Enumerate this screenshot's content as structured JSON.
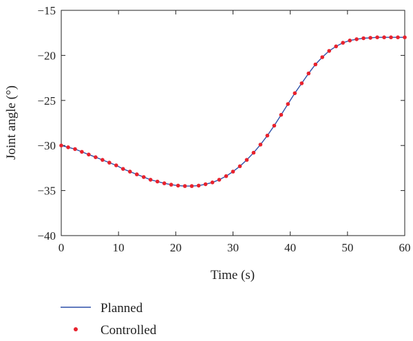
{
  "chart_data": {
    "type": "line",
    "title": "",
    "xlabel": "Time (s)",
    "ylabel": "Joint angle (°)",
    "xlim": [
      0,
      60
    ],
    "ylim": [
      -40,
      -15
    ],
    "xticks": [
      0,
      10,
      20,
      30,
      40,
      50,
      60
    ],
    "xtick_labels": [
      "0",
      "10",
      "20",
      "30",
      "40",
      "50",
      "60"
    ],
    "yticks": [
      -15,
      -20,
      -25,
      -30,
      -35,
      -40
    ],
    "ytick_labels": [
      "−15",
      "−20",
      "−25",
      "−30",
      "−35",
      "−40"
    ],
    "grid": false,
    "legend_position": "bottom-left, below axes",
    "series": [
      {
        "name": "Planned",
        "style": "line",
        "color": "#2c4fa8",
        "x": [
          0,
          1.2,
          2.4,
          3.6,
          4.8,
          6.0,
          7.2,
          8.4,
          9.6,
          10.8,
          12.0,
          13.2,
          14.4,
          15.6,
          16.8,
          18.0,
          19.2,
          20.4,
          21.6,
          22.8,
          24.0,
          25.2,
          26.4,
          27.6,
          28.8,
          30.0,
          31.2,
          32.4,
          33.6,
          34.8,
          36.0,
          37.2,
          38.4,
          39.6,
          40.8,
          42.0,
          43.2,
          44.4,
          45.6,
          46.8,
          48.0,
          49.2,
          50.4,
          51.6,
          52.8,
          54.0,
          55.2,
          56.4,
          57.6,
          58.8,
          60.0
        ],
        "y": [
          -30.0,
          -30.2,
          -30.4,
          -30.7,
          -31.0,
          -31.3,
          -31.6,
          -31.9,
          -32.2,
          -32.6,
          -32.9,
          -33.2,
          -33.5,
          -33.8,
          -34.0,
          -34.2,
          -34.35,
          -34.45,
          -34.5,
          -34.5,
          -34.45,
          -34.3,
          -34.1,
          -33.8,
          -33.4,
          -32.9,
          -32.3,
          -31.6,
          -30.8,
          -29.9,
          -28.9,
          -27.8,
          -26.6,
          -25.4,
          -24.2,
          -23.1,
          -22.0,
          -21.0,
          -20.2,
          -19.5,
          -19.0,
          -18.6,
          -18.35,
          -18.2,
          -18.1,
          -18.05,
          -18.0,
          -18.0,
          -18.0,
          -18.0,
          -18.0
        ]
      },
      {
        "name": "Controlled",
        "style": "markers",
        "color": "#e8222d",
        "x": [
          0,
          1.2,
          2.4,
          3.6,
          4.8,
          6.0,
          7.2,
          8.4,
          9.6,
          10.8,
          12.0,
          13.2,
          14.4,
          15.6,
          16.8,
          18.0,
          19.2,
          20.4,
          21.6,
          22.8,
          24.0,
          25.2,
          26.4,
          27.6,
          28.8,
          30.0,
          31.2,
          32.4,
          33.6,
          34.8,
          36.0,
          37.2,
          38.4,
          39.6,
          40.8,
          42.0,
          43.2,
          44.4,
          45.6,
          46.8,
          48.0,
          49.2,
          50.4,
          51.6,
          52.8,
          54.0,
          55.2,
          56.4,
          57.6,
          58.8,
          60.0
        ],
        "y": [
          -30.0,
          -30.2,
          -30.4,
          -30.7,
          -31.0,
          -31.3,
          -31.6,
          -31.9,
          -32.2,
          -32.6,
          -32.9,
          -33.2,
          -33.5,
          -33.8,
          -34.0,
          -34.2,
          -34.35,
          -34.45,
          -34.5,
          -34.5,
          -34.45,
          -34.3,
          -34.1,
          -33.8,
          -33.4,
          -32.9,
          -32.3,
          -31.6,
          -30.8,
          -29.9,
          -28.9,
          -27.8,
          -26.6,
          -25.4,
          -24.2,
          -23.1,
          -22.0,
          -21.0,
          -20.2,
          -19.5,
          -19.0,
          -18.6,
          -18.35,
          -18.2,
          -18.1,
          -18.05,
          -18.0,
          -18.0,
          -18.0,
          -18.0,
          -18.0
        ]
      }
    ]
  }
}
